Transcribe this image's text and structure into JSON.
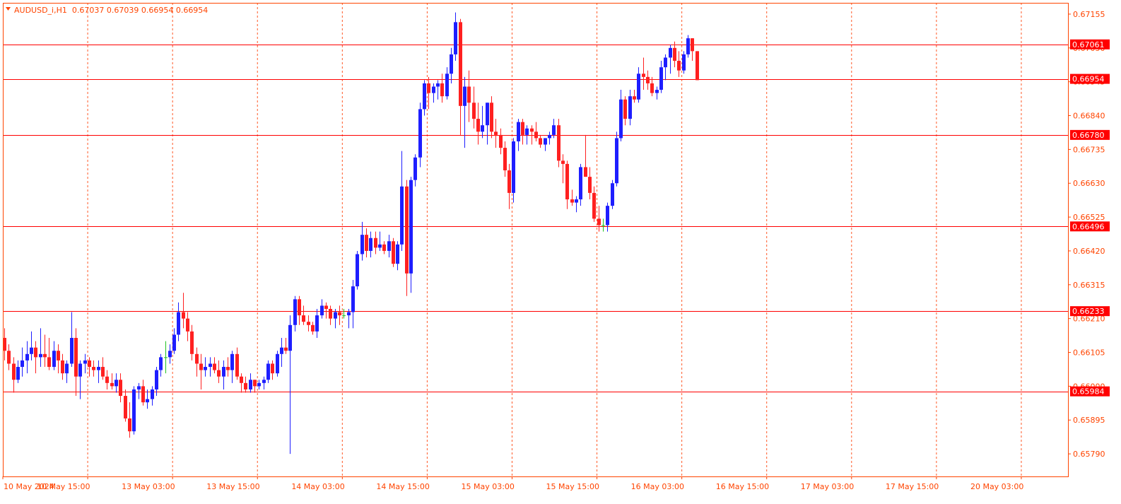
{
  "header": {
    "label": "AUDUSD_i,H1  0.67037 0.67039 0.66954 0.66954"
  },
  "colors": {
    "bull": "#1e1eff",
    "bear": "#ff2020",
    "doji": "#22c222",
    "grid": "#ff3b00",
    "frame": "#ff4400",
    "level": "#ff0000",
    "axis_text": "#ff4400"
  },
  "chart_data": {
    "type": "candlestick",
    "symbol": "AUDUSD_i",
    "timeframe": "H1",
    "ylim": [
      0.6572,
      0.6719
    ],
    "price_ticks": [
      0.67155,
      0.6705,
      0.66945,
      0.6684,
      0.66735,
      0.6663,
      0.66525,
      0.6642,
      0.66315,
      0.6621,
      0.66105,
      0.66,
      0.65895,
      0.6579
    ],
    "price_tick_labels": [
      "0.67155",
      "0.67050",
      "0.66945",
      "0.66840",
      "0.66735",
      "0.66630",
      "0.66525",
      "0.66420",
      "0.66315",
      "0.66210",
      "0.66105",
      "0.66000",
      "0.65895",
      "0.65790"
    ],
    "time_labels": [
      "10 May 2024",
      "10 May 15:00",
      "13 May 03:00",
      "13 May 15:00",
      "14 May 03:00",
      "14 May 15:00",
      "15 May 03:00",
      "15 May 15:00",
      "16 May 03:00",
      "16 May 15:00",
      "17 May 03:00",
      "17 May 15:00",
      "20 May 03:00"
    ],
    "horizontal_levels": [
      {
        "label": "0.67061",
        "value": 0.67061
      },
      {
        "label": "0.66954",
        "value": 0.66954
      },
      {
        "label": "0.66780",
        "value": 0.6678
      },
      {
        "label": "0.66496",
        "value": 0.66496
      },
      {
        "label": "0.66233",
        "value": 0.66233
      },
      {
        "label": "0.65984",
        "value": 0.65984
      }
    ],
    "grid": true,
    "ohlc": [
      [
        0.6615,
        0.6618,
        0.6608,
        0.6611
      ],
      [
        0.6611,
        0.6613,
        0.6605,
        0.6607
      ],
      [
        0.6607,
        0.6609,
        0.6598,
        0.6602
      ],
      [
        0.6602,
        0.6608,
        0.6601,
        0.6606
      ],
      [
        0.6606,
        0.6612,
        0.6603,
        0.6608
      ],
      [
        0.6608,
        0.6614,
        0.6604,
        0.661
      ],
      [
        0.661,
        0.6617,
        0.6608,
        0.6612
      ],
      [
        0.6612,
        0.6614,
        0.6604,
        0.6609
      ],
      [
        0.6609,
        0.6618,
        0.6606,
        0.661
      ],
      [
        0.661,
        0.6616,
        0.6606,
        0.6609
      ],
      [
        0.6609,
        0.6615,
        0.6605,
        0.6606
      ],
      [
        0.6606,
        0.6614,
        0.6605,
        0.6611
      ],
      [
        0.6611,
        0.6613,
        0.6604,
        0.6608
      ],
      [
        0.6608,
        0.661,
        0.6602,
        0.6604
      ],
      [
        0.6604,
        0.6608,
        0.6601,
        0.6607
      ],
      [
        0.6607,
        0.6623,
        0.6606,
        0.6615
      ],
      [
        0.6615,
        0.6618,
        0.6597,
        0.6603
      ],
      [
        0.6603,
        0.6608,
        0.6596,
        0.6607
      ],
      [
        0.6607,
        0.661,
        0.6604,
        0.6608
      ],
      [
        0.6608,
        0.6609,
        0.6603,
        0.6606
      ],
      [
        0.6606,
        0.6608,
        0.6603,
        0.6605
      ],
      [
        0.6605,
        0.6608,
        0.6601,
        0.6606
      ],
      [
        0.6606,
        0.6609,
        0.6602,
        0.6603
      ],
      [
        0.6603,
        0.6605,
        0.6599,
        0.6601
      ],
      [
        0.6601,
        0.6604,
        0.6599,
        0.66
      ],
      [
        0.66,
        0.6604,
        0.6598,
        0.6602
      ],
      [
        0.6602,
        0.6604,
        0.6595,
        0.6597
      ],
      [
        0.6597,
        0.6599,
        0.6589,
        0.659
      ],
      [
        0.659,
        0.6595,
        0.6584,
        0.6586
      ],
      [
        0.6586,
        0.66,
        0.6585,
        0.6599
      ],
      [
        0.6599,
        0.6601,
        0.6596,
        0.66
      ],
      [
        0.66,
        0.6602,
        0.6594,
        0.6595
      ],
      [
        0.6595,
        0.6599,
        0.6593,
        0.6596
      ],
      [
        0.6596,
        0.66,
        0.6594,
        0.6599
      ],
      [
        0.6599,
        0.6606,
        0.6597,
        0.6605
      ],
      [
        0.6605,
        0.661,
        0.6603,
        0.6609
      ],
      [
        0.6609,
        0.6614,
        0.6604,
        0.6609
      ],
      [
        0.6609,
        0.6613,
        0.6607,
        0.6611
      ],
      [
        0.6611,
        0.6618,
        0.661,
        0.6616
      ],
      [
        0.6616,
        0.6626,
        0.6614,
        0.6623
      ],
      [
        0.6623,
        0.6629,
        0.6618,
        0.6621
      ],
      [
        0.6621,
        0.6623,
        0.6614,
        0.6617
      ],
      [
        0.6617,
        0.6619,
        0.6608,
        0.661
      ],
      [
        0.661,
        0.6612,
        0.6603,
        0.6607
      ],
      [
        0.6607,
        0.661,
        0.6599,
        0.6605
      ],
      [
        0.6605,
        0.6609,
        0.6603,
        0.6606
      ],
      [
        0.6606,
        0.6609,
        0.6603,
        0.6607
      ],
      [
        0.6607,
        0.6609,
        0.6604,
        0.6605
      ],
      [
        0.6605,
        0.6608,
        0.6601,
        0.6603
      ],
      [
        0.6603,
        0.6608,
        0.6599,
        0.6606
      ],
      [
        0.6606,
        0.6609,
        0.6603,
        0.6605
      ],
      [
        0.6605,
        0.6611,
        0.6601,
        0.661
      ],
      [
        0.661,
        0.6612,
        0.6602,
        0.6603
      ],
      [
        0.6603,
        0.6604,
        0.6598,
        0.6601
      ],
      [
        0.6601,
        0.6603,
        0.6598,
        0.6599
      ],
      [
        0.6599,
        0.6604,
        0.6598,
        0.6602
      ],
      [
        0.6602,
        0.6602,
        0.6598,
        0.66
      ],
      [
        0.66,
        0.6602,
        0.6599,
        0.6601
      ],
      [
        0.6601,
        0.6603,
        0.6599,
        0.6602
      ],
      [
        0.6602,
        0.6608,
        0.6601,
        0.6607
      ],
      [
        0.6607,
        0.6608,
        0.6602,
        0.6604
      ],
      [
        0.6604,
        0.6611,
        0.6603,
        0.661
      ],
      [
        0.661,
        0.6615,
        0.6606,
        0.6612
      ],
      [
        0.6612,
        0.6615,
        0.661,
        0.6611
      ],
      [
        0.6611,
        0.6622,
        0.6579,
        0.6619
      ],
      [
        0.6619,
        0.6628,
        0.6617,
        0.6627
      ],
      [
        0.6627,
        0.6628,
        0.6619,
        0.6622
      ],
      [
        0.6622,
        0.6625,
        0.6619,
        0.662
      ],
      [
        0.662,
        0.6622,
        0.6617,
        0.6619
      ],
      [
        0.6619,
        0.662,
        0.6616,
        0.6617
      ],
      [
        0.6617,
        0.6624,
        0.6615,
        0.6622
      ],
      [
        0.6622,
        0.6627,
        0.6621,
        0.6625
      ],
      [
        0.6625,
        0.6626,
        0.6621,
        0.6624
      ],
      [
        0.6624,
        0.6625,
        0.6619,
        0.6621
      ],
      [
        0.6621,
        0.6624,
        0.6618,
        0.6623
      ],
      [
        0.6623,
        0.6625,
        0.6619,
        0.6622
      ],
      [
        0.6622,
        0.6624,
        0.6621,
        0.6622
      ],
      [
        0.6622,
        0.6624,
        0.6618,
        0.6623
      ],
      [
        0.6623,
        0.6633,
        0.6618,
        0.6631
      ],
      [
        0.6631,
        0.6642,
        0.663,
        0.6641
      ],
      [
        0.6641,
        0.6651,
        0.6639,
        0.6647
      ],
      [
        0.6647,
        0.6649,
        0.664,
        0.6642
      ],
      [
        0.6642,
        0.6648,
        0.664,
        0.6646
      ],
      [
        0.6646,
        0.6648,
        0.6641,
        0.6643
      ],
      [
        0.6643,
        0.6648,
        0.6642,
        0.6644
      ],
      [
        0.6644,
        0.6645,
        0.6641,
        0.6642
      ],
      [
        0.6642,
        0.6647,
        0.664,
        0.6645
      ],
      [
        0.6645,
        0.6646,
        0.6637,
        0.6638
      ],
      [
        0.6638,
        0.6645,
        0.6636,
        0.6644
      ],
      [
        0.6644,
        0.6673,
        0.6642,
        0.6662
      ],
      [
        0.6662,
        0.6664,
        0.6628,
        0.6635
      ],
      [
        0.6635,
        0.6665,
        0.6629,
        0.6664
      ],
      [
        0.6664,
        0.6672,
        0.6662,
        0.6671
      ],
      [
        0.6671,
        0.6688,
        0.6668,
        0.6686
      ],
      [
        0.6686,
        0.6695,
        0.6684,
        0.6694
      ],
      [
        0.6694,
        0.6696,
        0.6686,
        0.6691
      ],
      [
        0.6691,
        0.6694,
        0.6688,
        0.6693
      ],
      [
        0.6693,
        0.6695,
        0.6689,
        0.6694
      ],
      [
        0.6694,
        0.6697,
        0.6688,
        0.669
      ],
      [
        0.669,
        0.6699,
        0.6689,
        0.6697
      ],
      [
        0.6697,
        0.6705,
        0.6694,
        0.6703
      ],
      [
        0.6703,
        0.6716,
        0.6701,
        0.6713
      ],
      [
        0.6713,
        0.6714,
        0.6678,
        0.6687
      ],
      [
        0.6687,
        0.6696,
        0.6674,
        0.6693
      ],
      [
        0.6693,
        0.6698,
        0.6682,
        0.6688
      ],
      [
        0.6688,
        0.6693,
        0.668,
        0.6683
      ],
      [
        0.6683,
        0.6688,
        0.6675,
        0.6679
      ],
      [
        0.6679,
        0.6687,
        0.6677,
        0.6681
      ],
      [
        0.6681,
        0.6688,
        0.6675,
        0.6688
      ],
      [
        0.6688,
        0.669,
        0.6677,
        0.6679
      ],
      [
        0.6679,
        0.6683,
        0.6674,
        0.6678
      ],
      [
        0.6678,
        0.668,
        0.6672,
        0.6674
      ],
      [
        0.6674,
        0.6676,
        0.6665,
        0.6667
      ],
      [
        0.6667,
        0.6669,
        0.6655,
        0.666
      ],
      [
        0.666,
        0.6677,
        0.6657,
        0.6676
      ],
      [
        0.6676,
        0.6683,
        0.6673,
        0.6682
      ],
      [
        0.6682,
        0.6683,
        0.6675,
        0.6678
      ],
      [
        0.6678,
        0.6681,
        0.6675,
        0.668
      ],
      [
        0.668,
        0.6681,
        0.6675,
        0.6679
      ],
      [
        0.6679,
        0.6682,
        0.6676,
        0.6677
      ],
      [
        0.6677,
        0.6678,
        0.6674,
        0.6675
      ],
      [
        0.6675,
        0.6677,
        0.6673,
        0.6677
      ],
      [
        0.6677,
        0.6679,
        0.6675,
        0.6678
      ],
      [
        0.6678,
        0.6683,
        0.6677,
        0.6681
      ],
      [
        0.6681,
        0.6683,
        0.6668,
        0.667
      ],
      [
        0.667,
        0.6672,
        0.6663,
        0.6669
      ],
      [
        0.6669,
        0.667,
        0.6655,
        0.6658
      ],
      [
        0.6658,
        0.6661,
        0.6656,
        0.6657
      ],
      [
        0.6657,
        0.6659,
        0.6654,
        0.6658
      ],
      [
        0.6658,
        0.6669,
        0.6656,
        0.6668
      ],
      [
        0.6668,
        0.6678,
        0.6665,
        0.6665
      ],
      [
        0.6665,
        0.6668,
        0.6658,
        0.666
      ],
      [
        0.666,
        0.6662,
        0.6651,
        0.6652
      ],
      [
        0.6652,
        0.6656,
        0.6648,
        0.665
      ],
      [
        0.665,
        0.6652,
        0.6648,
        0.665
      ],
      [
        0.665,
        0.6657,
        0.6648,
        0.6656
      ],
      [
        0.6656,
        0.6664,
        0.6655,
        0.6663
      ],
      [
        0.6663,
        0.6679,
        0.6662,
        0.6677
      ],
      [
        0.6677,
        0.6692,
        0.6676,
        0.6689
      ],
      [
        0.6689,
        0.669,
        0.6681,
        0.6683
      ],
      [
        0.6683,
        0.6692,
        0.6681,
        0.669
      ],
      [
        0.669,
        0.6692,
        0.6688,
        0.6689
      ],
      [
        0.6689,
        0.6699,
        0.6688,
        0.6697
      ],
      [
        0.6697,
        0.6702,
        0.6692,
        0.6696
      ],
      [
        0.6696,
        0.6698,
        0.6692,
        0.6694
      ],
      [
        0.6694,
        0.6696,
        0.669,
        0.6691
      ],
      [
        0.6691,
        0.6693,
        0.6689,
        0.6692
      ],
      [
        0.6692,
        0.6701,
        0.6691,
        0.6699
      ],
      [
        0.6699,
        0.6703,
        0.6695,
        0.6702
      ],
      [
        0.6702,
        0.6706,
        0.6697,
        0.6705
      ],
      [
        0.6705,
        0.6707,
        0.6699,
        0.6701
      ],
      [
        0.6701,
        0.6704,
        0.6696,
        0.6698
      ],
      [
        0.6698,
        0.6704,
        0.6697,
        0.6703
      ],
      [
        0.6703,
        0.6709,
        0.6702,
        0.6708
      ],
      [
        0.6708,
        0.6708,
        0.6701,
        0.6704
      ],
      [
        0.6704,
        0.6704,
        0.6695,
        0.6695
      ]
    ]
  }
}
